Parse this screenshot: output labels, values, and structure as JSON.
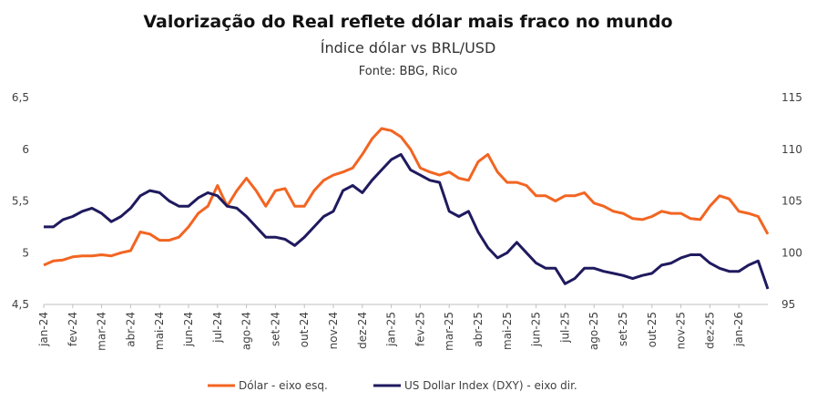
{
  "chart_data": {
    "type": "line",
    "title": "Valorização do Real reflete dólar mais fraco no mundo",
    "subtitle": "Índice dólar vs BRL/USD",
    "source": "Fonte: BBG, Rico",
    "categories": [
      "jan-24",
      null,
      null,
      "fev-24",
      null,
      null,
      "mar-24",
      null,
      null,
      "abr-24",
      null,
      null,
      "mai-24",
      null,
      null,
      "jun-24",
      null,
      null,
      "jul-24",
      null,
      null,
      "ago-24",
      null,
      null,
      "set-24",
      null,
      null,
      "out-24",
      null,
      null,
      "nov-24",
      null,
      null,
      "dez-24",
      null,
      null,
      "jan-25",
      null,
      null,
      "fev-25",
      null,
      null,
      "mar-25",
      null,
      null,
      "abr-25",
      null,
      null,
      "mai-25",
      null,
      null,
      "jun-25",
      null,
      null,
      "jul-25",
      null,
      null,
      "ago-25",
      null,
      null,
      "set-25",
      null,
      null,
      "out-25",
      null,
      null,
      "nov-25",
      null,
      null,
      "dez-25",
      null,
      null,
      "jan-26",
      null,
      null,
      null
    ],
    "series": [
      {
        "name": "Dólar - eixo esq.",
        "color": "#f26522",
        "axis": "y",
        "values": [
          4.88,
          4.92,
          4.93,
          4.96,
          4.97,
          4.97,
          4.98,
          4.97,
          5.0,
          5.02,
          5.2,
          5.18,
          5.12,
          5.12,
          5.15,
          5.25,
          5.38,
          5.45,
          5.65,
          5.45,
          5.6,
          5.72,
          5.6,
          5.45,
          5.6,
          5.62,
          5.45,
          5.45,
          5.6,
          5.7,
          5.75,
          5.78,
          5.82,
          5.95,
          6.1,
          6.2,
          6.18,
          6.12,
          6.0,
          5.82,
          5.78,
          5.75,
          5.78,
          5.72,
          5.7,
          5.88,
          5.95,
          5.78,
          5.68,
          5.68,
          5.65,
          5.55,
          5.55,
          5.5,
          5.55,
          5.55,
          5.58,
          5.48,
          5.45,
          5.4,
          5.38,
          5.33,
          5.32,
          5.35,
          5.4,
          5.38,
          5.38,
          5.33,
          5.32,
          5.45,
          5.55,
          5.52,
          5.4,
          5.38,
          5.35,
          5.18
        ]
      },
      {
        "name": "US Dollar Index (DXY) - eixo dir.",
        "color": "#1f1a5e",
        "axis": "y2",
        "values": [
          102.5,
          102.5,
          103.2,
          103.5,
          104.0,
          104.3,
          103.8,
          103.0,
          103.5,
          104.3,
          105.5,
          106.0,
          105.8,
          105.0,
          104.5,
          104.5,
          105.3,
          105.8,
          105.5,
          104.5,
          104.3,
          103.5,
          102.5,
          101.5,
          101.5,
          101.3,
          100.7,
          101.5,
          102.5,
          103.5,
          104.0,
          106.0,
          106.5,
          105.8,
          107.0,
          108.0,
          109.0,
          109.5,
          108.0,
          107.5,
          107.0,
          106.8,
          104.0,
          103.5,
          104.0,
          102.0,
          100.5,
          99.5,
          100.0,
          101.0,
          100.0,
          99.0,
          98.5,
          98.5,
          97.0,
          97.5,
          98.5,
          98.5,
          98.2,
          98.0,
          97.8,
          97.5,
          97.8,
          98.0,
          98.8,
          99.0,
          99.5,
          99.8,
          99.8,
          99.0,
          98.5,
          98.2,
          98.2,
          98.8,
          99.2,
          96.5
        ]
      }
    ],
    "ylim": [
      4.5,
      6.5
    ],
    "yticks": [
      {
        "value": 4.5,
        "label": "4,5"
      },
      5,
      {
        "value": 5.5,
        "label": "5,5"
      },
      6,
      {
        "value": 6.5,
        "label": "6,5"
      }
    ],
    "y2lim": [
      95,
      115
    ],
    "y2ticks": [
      95,
      100,
      105,
      110,
      115
    ],
    "legend": "bottom"
  }
}
